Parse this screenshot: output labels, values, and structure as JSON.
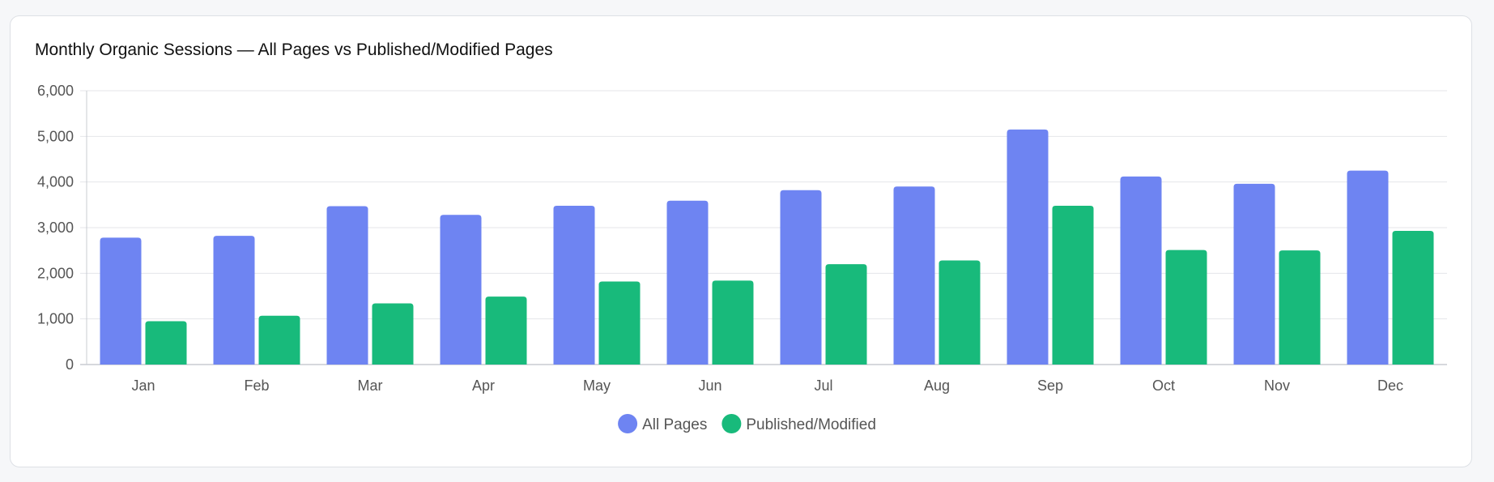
{
  "chart_data": {
    "type": "bar",
    "title": "Monthly Organic Sessions — All Pages vs Published/Modified Pages",
    "xlabel": "",
    "ylabel": "",
    "categories": [
      "Jan",
      "Feb",
      "Mar",
      "Apr",
      "May",
      "Jun",
      "Jul",
      "Aug",
      "Sep",
      "Oct",
      "Nov",
      "Dec"
    ],
    "series": [
      {
        "name": "All Pages",
        "color": "#6e84f2",
        "values": [
          2780,
          2820,
          3470,
          3280,
          3480,
          3590,
          3820,
          3900,
          5150,
          4120,
          3960,
          4250
        ]
      },
      {
        "name": "Published/Modified",
        "color": "#18ba7b",
        "values": [
          950,
          1070,
          1340,
          1490,
          1820,
          1840,
          2200,
          2280,
          3480,
          2510,
          2500,
          2930
        ]
      }
    ],
    "ylim": [
      0,
      6000
    ],
    "yticks": [
      0,
      1000,
      2000,
      3000,
      4000,
      5000,
      6000
    ],
    "ytick_labels": [
      "0",
      "1,000",
      "2,000",
      "3,000",
      "4,000",
      "5,000",
      "6,000"
    ],
    "grid": true,
    "legend_position": "bottom"
  }
}
